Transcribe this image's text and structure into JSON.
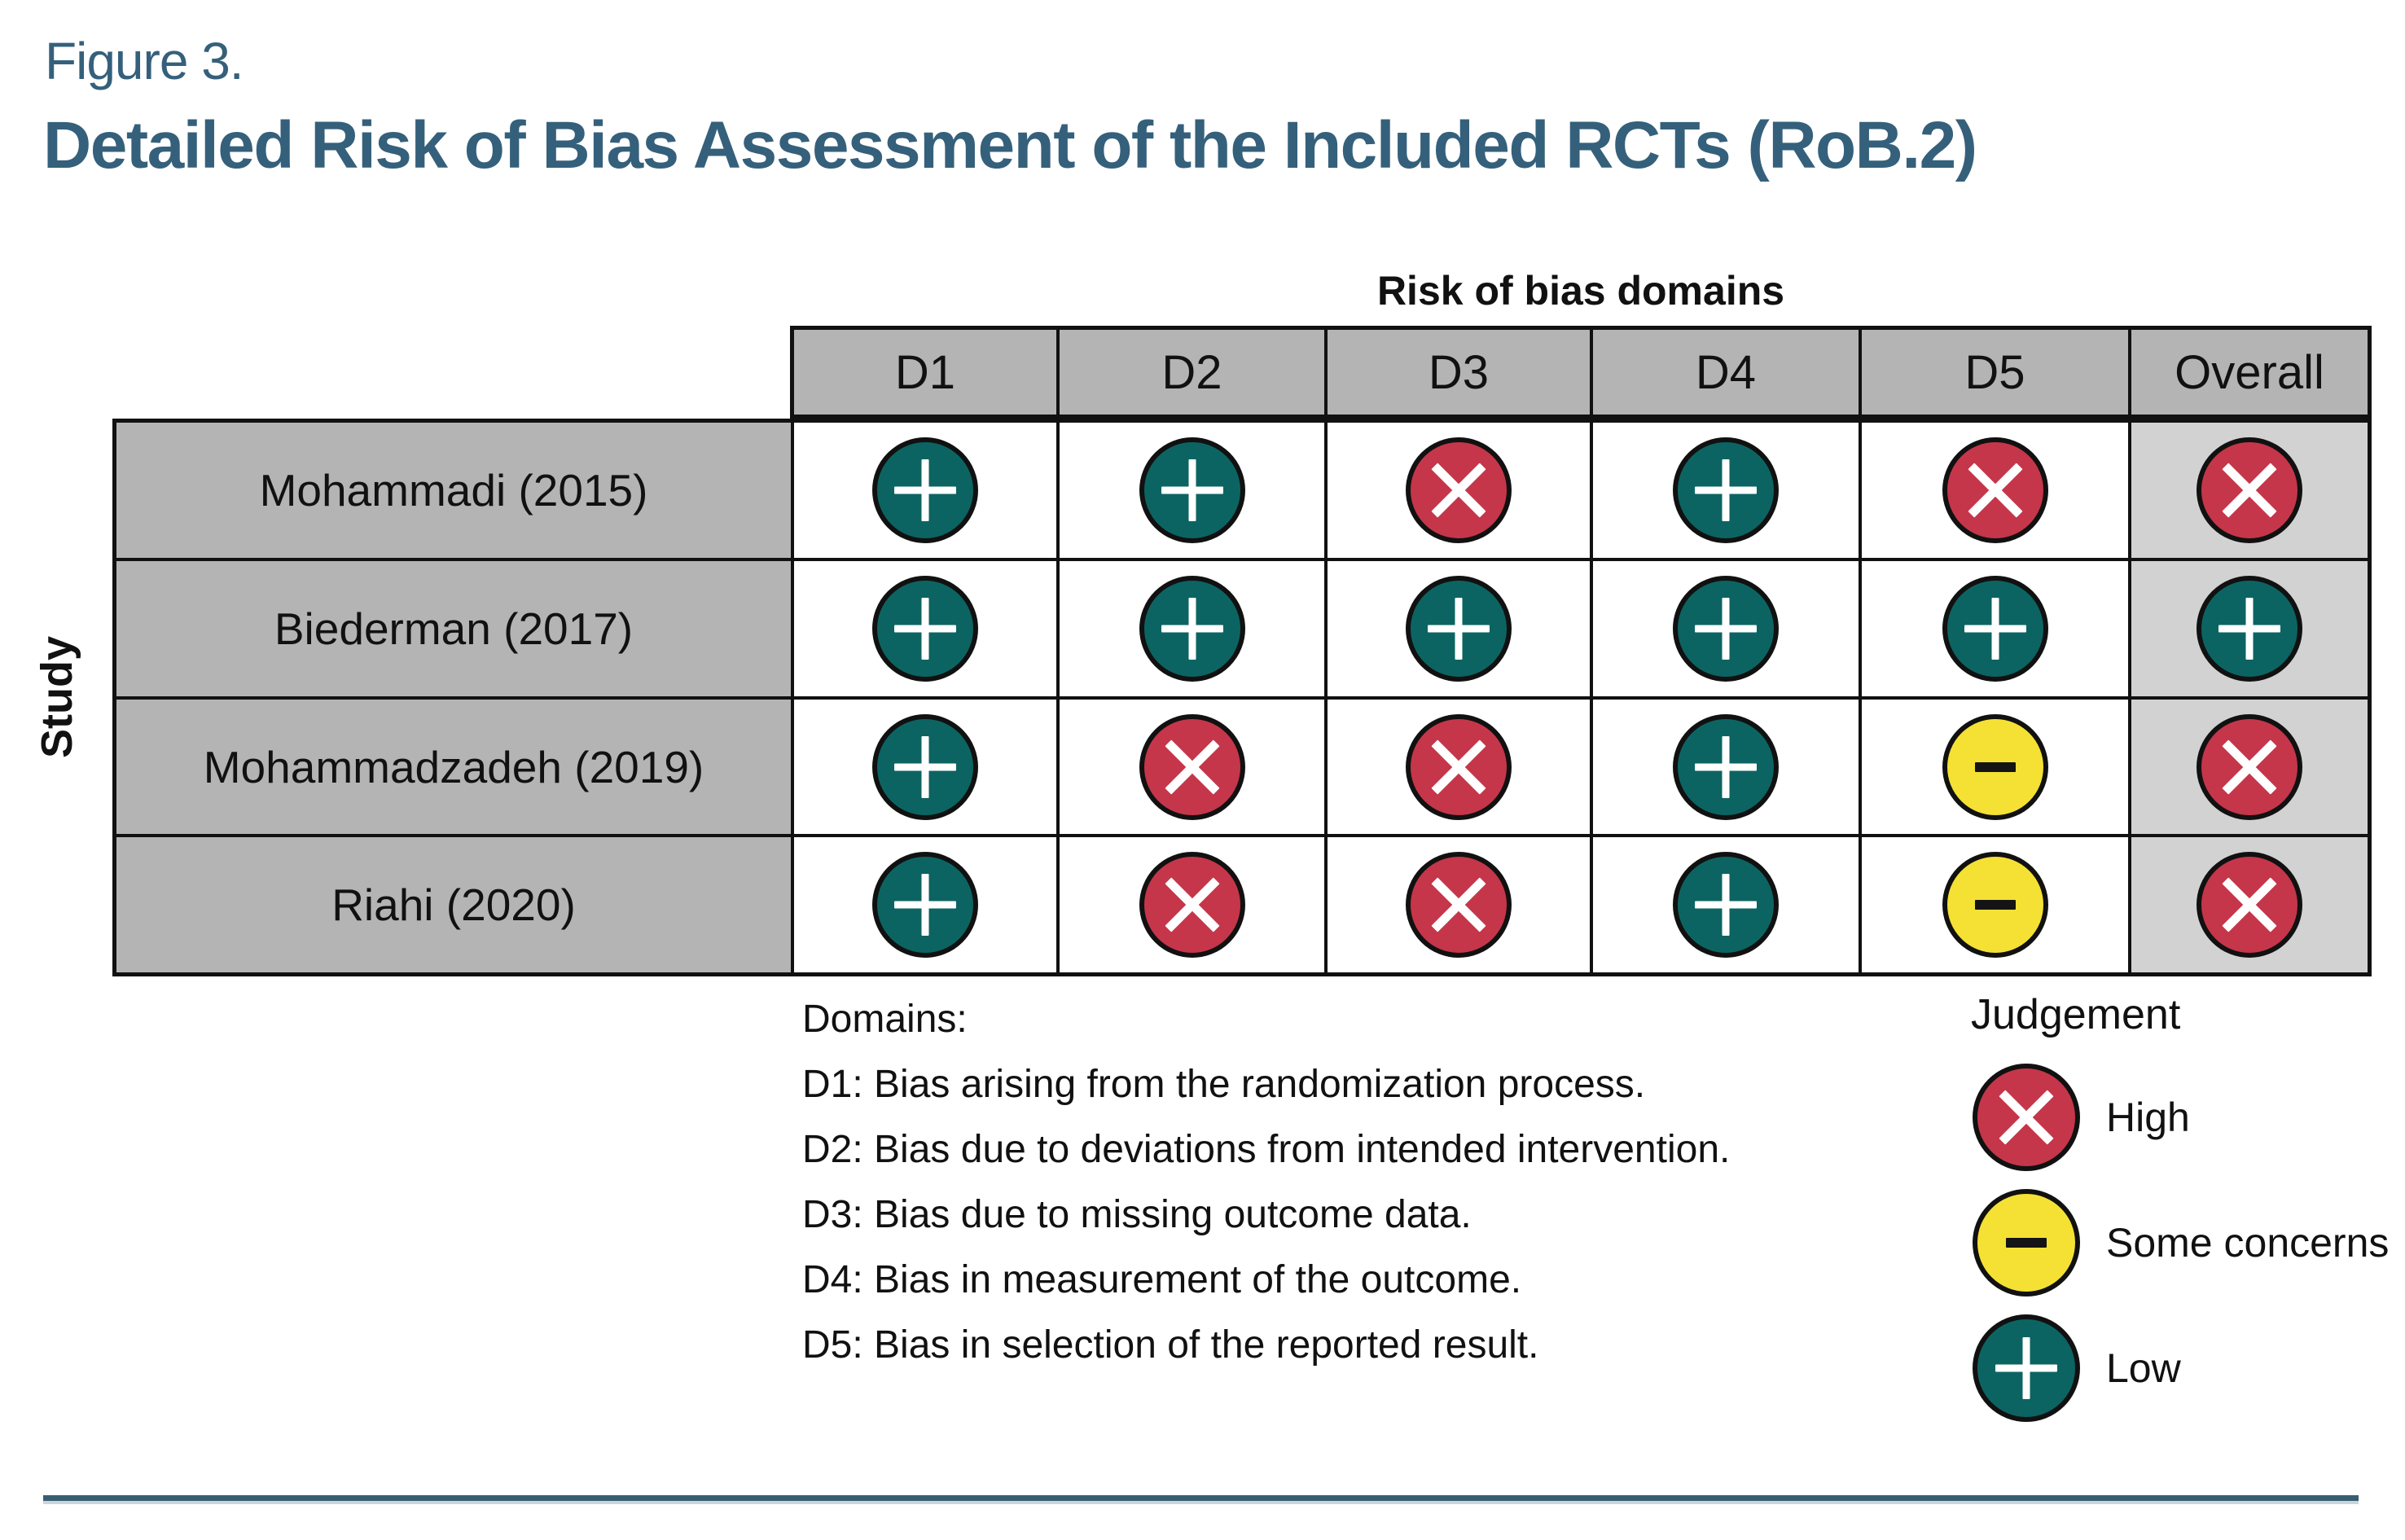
{
  "figure": {
    "label": "Figure 3.",
    "title": "Detailed Risk of Bias Assessment of the Included RCTs (RoB.2)"
  },
  "chart_data": {
    "type": "table",
    "columns_axis_title": "Risk of bias domains",
    "rows_axis_title": "Study",
    "columns": [
      "D1",
      "D2",
      "D3",
      "D4",
      "D5",
      "Overall"
    ],
    "rows": [
      {
        "study": "Mohammadi (2015)",
        "judgements": [
          "low",
          "low",
          "high",
          "low",
          "high",
          "high"
        ]
      },
      {
        "study": "Biederman (2017)",
        "judgements": [
          "low",
          "low",
          "low",
          "low",
          "low",
          "low"
        ]
      },
      {
        "study": "Mohammadzadeh (2019)",
        "judgements": [
          "low",
          "high",
          "high",
          "low",
          "some_concerns",
          "high"
        ]
      },
      {
        "study": "Riahi (2020)",
        "judgements": [
          "low",
          "high",
          "high",
          "low",
          "some_concerns",
          "high"
        ]
      }
    ]
  },
  "footnotes": {
    "heading": "Domains:",
    "items": [
      "D1: Bias arising from the randomization process.",
      "D2: Bias due to deviations from intended intervention.",
      "D3: Bias due to missing outcome data.",
      "D4: Bias in measurement of the outcome.",
      "D5: Bias in selection of the reported result."
    ]
  },
  "legend": {
    "title": "Judgement",
    "items": [
      {
        "key": "high",
        "symbol": "×",
        "label": "High"
      },
      {
        "key": "some_concerns",
        "symbol": "−",
        "label": "Some concerns"
      },
      {
        "key": "low",
        "symbol": "+",
        "label": "Low"
      }
    ]
  },
  "judgement_styles": {
    "high": {
      "fill": "#C5364A",
      "symbol": "×",
      "symbol_color": "#FFFFFF",
      "shape": "x"
    },
    "some_concerns": {
      "fill": "#F5E134",
      "symbol": "−",
      "symbol_color": "#141414",
      "shape": "minus"
    },
    "low": {
      "fill": "#0C6462",
      "symbol": "+",
      "symbol_color": "#FFFFFF",
      "shape": "plus"
    }
  },
  "colors": {
    "title": "#35607B",
    "table_grid": "#111111",
    "header_background": "#B4B4B4",
    "study_column_background": "#B4B4B4",
    "overall_column_background": "#D2D2D2",
    "high_risk": "#C5364A",
    "some_concerns": "#F5E134",
    "low_risk": "#0C6462",
    "bottom_rule": "#3A5C72",
    "bottom_rule_shadow": "#C9D5DC"
  }
}
